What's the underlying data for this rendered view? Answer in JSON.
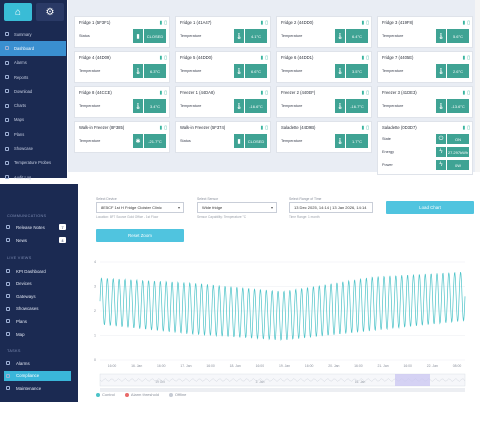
{
  "panel1": {
    "topbar": {
      "home_icon": "home-icon",
      "settings_icon": "gear-icon"
    },
    "nav": [
      "Summary",
      "Dashboard",
      "Alarms",
      "Reports",
      "Download",
      "Charts",
      "Maps",
      "Plans",
      "Showcase",
      "Temperature Probes",
      "Audit Log"
    ],
    "nav_active_index": 1,
    "cards": [
      {
        "title": "Fridge 1 (5F3F1)",
        "label": "Status",
        "value": "CLOSED",
        "icon": "door-icon"
      },
      {
        "title": "Fridge 1 (41A47)",
        "label": "Temperature",
        "value": "4.1°C",
        "icon": "thermometer-icon"
      },
      {
        "title": "Fridge 2 (44DD0)",
        "label": "Temperature",
        "value": "6.4°C",
        "icon": "thermometer-icon"
      },
      {
        "title": "Fridge 3 (419F8)",
        "label": "Temperature",
        "value": "5.6°C",
        "icon": "thermometer-icon"
      },
      {
        "title": "Fridge 4 (44D09)",
        "label": "Temperature",
        "value": "6.3°C",
        "icon": "thermometer-icon"
      },
      {
        "title": "Fridge 5 (44DD0)",
        "label": "Temperature",
        "value": "6.6°C",
        "icon": "thermometer-icon"
      },
      {
        "title": "Fridge 6 (44DD1)",
        "label": "Temperature",
        "value": "3.5°C",
        "icon": "thermometer-icon"
      },
      {
        "title": "Fridge 7 (4405E)",
        "label": "Temperature",
        "value": "2.6°C",
        "icon": "thermometer-icon"
      },
      {
        "title": "Fridge 8 (44CCE)",
        "label": "Temperature",
        "value": "3.4°C",
        "icon": "thermometer-icon"
      },
      {
        "title": "Freezer 1 (44DA8)",
        "label": "Temperature",
        "value": "-16.6°C",
        "icon": "thermometer-icon"
      },
      {
        "title": "Freezer 2 (440EF)",
        "label": "Temperature",
        "value": "-16.7°C",
        "icon": "thermometer-icon"
      },
      {
        "title": "Freezer 3 (41DE3)",
        "label": "Temperature",
        "value": "-13.6°C",
        "icon": "thermometer-icon"
      },
      {
        "title": "Walk-in Freezer (8F385)",
        "label": "Temperature",
        "value": "-21.7°C",
        "icon": "snowflake-icon"
      },
      {
        "title": "Walk-in Freezer (5F374)",
        "label": "Status",
        "value": "CLOSED",
        "icon": "door-icon"
      },
      {
        "title": "Saladette (44D9B)",
        "label": "Temperature",
        "value": "1.7°C",
        "icon": "thermometer-icon"
      }
    ],
    "power_card": {
      "title": "Saladette (0D3D7)",
      "rows": [
        {
          "label": "State",
          "value": "ON",
          "icon": "power-icon"
        },
        {
          "label": "Energy",
          "value": "27.297kWh",
          "icon": "bolt-icon"
        },
        {
          "label": "Power",
          "value": "0W",
          "icon": "bolt-icon"
        }
      ]
    }
  },
  "panel2": {
    "sidebar": {
      "sec1": "COMMUNICATIONS",
      "sec1_items": [
        {
          "label": "Release Notes",
          "badge": "7"
        },
        {
          "label": "News",
          "badge": "4"
        }
      ],
      "sec2": "LIVE VIEWS",
      "sec2_items": [
        "KPI Dashboard",
        "Devices",
        "Gateways",
        "Showcases",
        "Plans",
        "Map"
      ],
      "sec3": "TASKS",
      "sec3_items": [
        "Alarms",
        "Compliance",
        "Maintenance"
      ],
      "active": "Compliance"
    },
    "form": {
      "device_label": "Select Device",
      "device_value": "8E5CF 1st H Fridge Cloister Clinic",
      "device_help": "Location: 8F7 Source Gold Office - 1st Floor",
      "sensor_label": "Select Sensor",
      "sensor_value": "Wide fridge",
      "sensor_help": "Sensor Capability: Temperature °C",
      "range_label": "Select Range of Time",
      "range_value": "13 Dec 2025, 14:14 | 13 Jan 2026, 14:14",
      "range_help": "Time Range: 1 month",
      "load_button": "Load Chart",
      "reset_button": "Reset Zoom"
    },
    "chart_data": {
      "type": "line",
      "title": "",
      "xlabel": "",
      "ylabel": "",
      "ylim": [
        0,
        4
      ],
      "y_ticks": [
        "0",
        "1",
        "2",
        "3",
        "4"
      ],
      "x_ticks": [
        "16:00",
        "16. Jan",
        "16:00",
        "17. Jan",
        "16:00",
        "18. Jan",
        "16:00",
        "19. Jan",
        "16:00",
        "20. Jan",
        "16:00",
        "21. Jan",
        "16:00",
        "22. Jan",
        "08:00"
      ],
      "navigator_ticks": [
        "19 Oct",
        "2. Jan",
        "16. Jan"
      ],
      "series": [
        {
          "name": "Control",
          "color": "#4cc3c8",
          "cycles": 62,
          "mean": [
            2.4,
            2.1,
            1.8,
            2.3,
            2.6
          ],
          "amplitude": [
            0.95,
            1.05,
            1.0,
            1.1,
            1.0
          ]
        }
      ],
      "legend": [
        "Control",
        "Alarm threshold",
        "Offline"
      ],
      "legend_colors": [
        "#4cc3c8",
        "#e86a6a",
        "#c6cbd4"
      ]
    }
  }
}
